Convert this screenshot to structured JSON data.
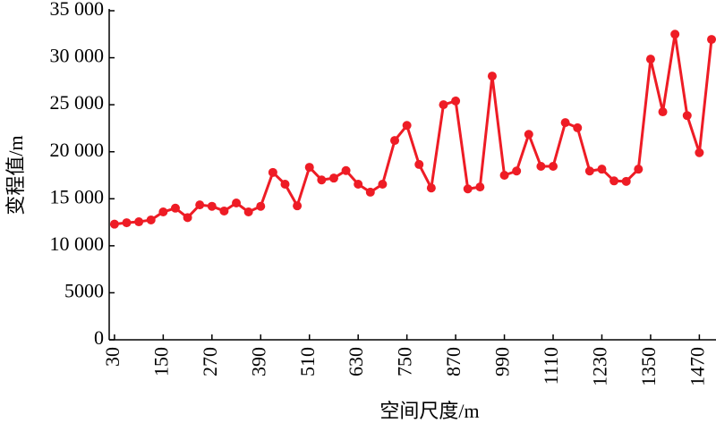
{
  "chart_data": {
    "type": "line",
    "x_label": "空间尺度/m",
    "y_label": "变程值/m",
    "x": [
      30,
      60,
      90,
      120,
      150,
      180,
      210,
      240,
      270,
      300,
      330,
      360,
      390,
      420,
      450,
      480,
      510,
      540,
      570,
      600,
      630,
      660,
      690,
      720,
      750,
      780,
      810,
      840,
      870,
      900,
      930,
      960,
      990,
      1020,
      1050,
      1080,
      1110,
      1140,
      1170,
      1200,
      1230,
      1260,
      1290,
      1320,
      1350,
      1380,
      1410,
      1440,
      1470,
      1500
    ],
    "values": [
      12300,
      12450,
      12550,
      12750,
      13600,
      14000,
      13000,
      14350,
      14200,
      13700,
      14550,
      13600,
      14200,
      17800,
      16550,
      14250,
      18350,
      17000,
      17200,
      18000,
      16550,
      15700,
      16550,
      21200,
      22800,
      18650,
      16150,
      25000,
      25400,
      16050,
      16250,
      28050,
      17500,
      17950,
      21850,
      18450,
      18450,
      23100,
      22550,
      17950,
      18150,
      16900,
      16850,
      18150,
      29850,
      24250,
      32500,
      23850,
      19900,
      31950
    ],
    "color": "#ee1c25",
    "xlim": [
      17,
      1511
    ],
    "ylim": [
      0,
      35000
    ],
    "xticks": [
      30,
      150,
      270,
      390,
      510,
      630,
      750,
      870,
      990,
      1110,
      1230,
      1350,
      1470
    ],
    "yticks": [
      0,
      5000,
      {
        "value": 10000,
        "label": "10 000"
      },
      {
        "value": 15000,
        "label": "15 000"
      },
      {
        "value": 20000,
        "label": "20 000"
      },
      {
        "value": 25000,
        "label": "25 000"
      },
      {
        "value": 30000,
        "label": "30 000"
      },
      {
        "value": 35000,
        "label": "35 000"
      }
    ]
  }
}
